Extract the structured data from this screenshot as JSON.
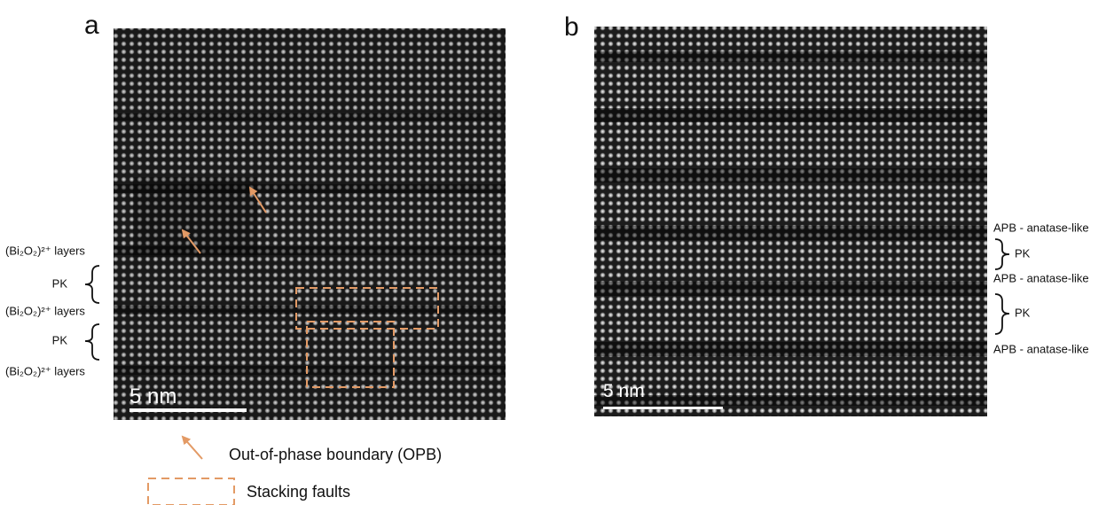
{
  "panel_a": {
    "label": "a",
    "annotations": [
      "(Bi₂O₂)²⁺ layers",
      "PK",
      "(Bi₂O₂)²⁺ layers",
      "PK",
      "(Bi₂O₂)²⁺ layers"
    ],
    "scale_bar": "5 nm"
  },
  "panel_b": {
    "label": "b",
    "annotations": [
      "APB - anatase-like",
      "PK",
      "APB - anatase-like",
      "PK",
      "APB - anatase-like"
    ],
    "scale_bar": "5 nm"
  },
  "legend": {
    "items": [
      "Out-of-phase boundary (OPB)",
      "Stacking faults"
    ]
  }
}
